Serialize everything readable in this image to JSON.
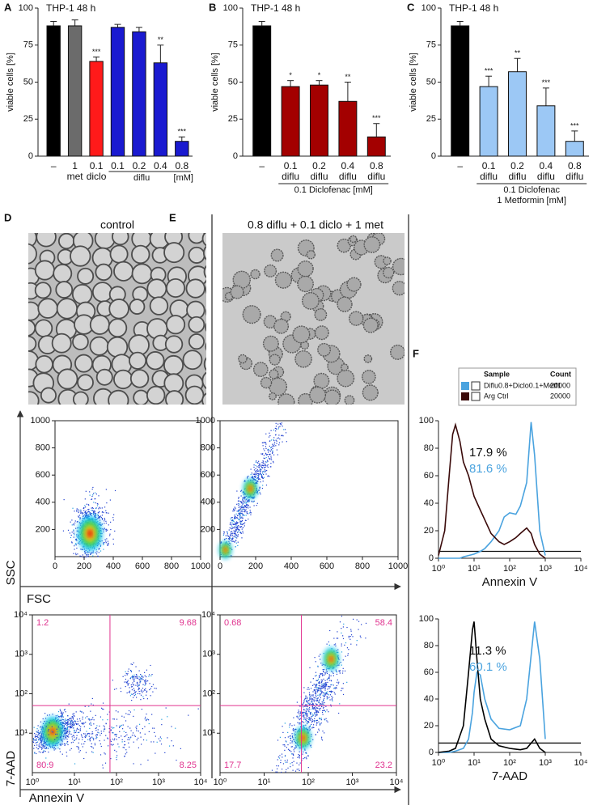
{
  "chart_data": [
    {
      "type": "bar",
      "panel": "A",
      "title": "THP-1 48 h",
      "ylabel": "viable cells [%]",
      "categories": [
        "–",
        "1",
        "0.1",
        "0.1",
        "0.2",
        "0.4",
        "0.8"
      ],
      "sublabels": [
        null,
        "met",
        "diclo",
        null,
        null,
        null,
        null
      ],
      "group": {
        "label": [
          "diflu"
        ],
        "span": [
          3,
          6
        ]
      },
      "unit_label": "[mM]",
      "values": [
        88,
        88,
        64,
        87,
        84,
        63,
        10
      ],
      "errors": [
        3,
        4,
        3,
        2,
        3,
        12,
        3
      ],
      "significance": [
        null,
        null,
        "***",
        null,
        null,
        "**",
        "***"
      ],
      "colors": [
        "#000000",
        "#6b6b6b",
        "#ff1a1a",
        "#1a1ad0",
        "#1a1ad0",
        "#1a1ad0",
        "#1a1ad0"
      ],
      "ylim": [
        0,
        100
      ],
      "yticks": [
        0,
        25,
        50,
        75,
        100
      ]
    },
    {
      "type": "bar",
      "panel": "B",
      "title": "THP-1 48 h",
      "ylabel": "viable cells [%]",
      "categories": [
        "–",
        "0.1",
        "0.2",
        "0.4",
        "0.8"
      ],
      "sublabels": [
        null,
        "diflu",
        "diflu",
        "diflu",
        "diflu"
      ],
      "group": {
        "label": [
          "0.1 Diclofenac [mM]"
        ],
        "span": [
          1,
          4
        ]
      },
      "values": [
        88,
        47,
        48,
        37,
        13
      ],
      "errors": [
        3,
        4,
        3,
        13,
        9
      ],
      "significance": [
        null,
        "*",
        "*",
        "**",
        "***"
      ],
      "colors": [
        "#000000",
        "#a30000",
        "#a30000",
        "#a30000",
        "#a30000"
      ],
      "ylim": [
        0,
        100
      ],
      "yticks": [
        0,
        25,
        50,
        75,
        100
      ]
    },
    {
      "type": "bar",
      "panel": "C",
      "title": "THP-1 48 h",
      "ylabel": "viable cells [%]",
      "categories": [
        "–",
        "0.1",
        "0.2",
        "0.4",
        "0.8"
      ],
      "sublabels": [
        null,
        "diflu",
        "diflu",
        "diflu",
        "diflu"
      ],
      "group": {
        "label": [
          "0.1 Diclofenac",
          "1 Metformin [mM]"
        ],
        "span": [
          1,
          4
        ]
      },
      "values": [
        88,
        47,
        57,
        34,
        10
      ],
      "errors": [
        3,
        7,
        9,
        12,
        7
      ],
      "significance": [
        null,
        "***",
        "**",
        "***",
        "***"
      ],
      "colors": [
        "#000000",
        "#9cc8f5",
        "#9cc8f5",
        "#9cc8f5",
        "#9cc8f5"
      ],
      "ylim": [
        0,
        100
      ],
      "yticks": [
        0,
        25,
        50,
        75,
        100
      ]
    },
    {
      "type": "density",
      "panel": "D",
      "image_title": "control",
      "xscale": "linear",
      "xlim": [
        0,
        1000
      ],
      "xticks": [
        0,
        200,
        400,
        600,
        800,
        1000
      ],
      "ylim": [
        0,
        1000
      ],
      "yticks": [
        200,
        400,
        600,
        800,
        1000
      ]
    },
    {
      "type": "density",
      "panel": "E",
      "image_title": "0.8 diflu + 0.1 diclo + 1 met",
      "xscale": "linear",
      "xlim": [
        0,
        1000
      ],
      "xticks": [
        0,
        200,
        400,
        600,
        800,
        1000
      ],
      "ylim": [
        0,
        1000
      ],
      "yticks": [
        200,
        400,
        600,
        800,
        1000
      ]
    },
    {
      "type": "density",
      "xscale": "log",
      "xlim": [
        1,
        10000
      ],
      "xticks": [
        {
          "value": 1,
          "label": "10⁰"
        },
        {
          "value": 10,
          "label": "10¹"
        },
        {
          "value": 100,
          "label": "10²"
        },
        {
          "value": 1000,
          "label": "10³"
        },
        {
          "value": 10000,
          "label": "10⁴"
        }
      ],
      "ylim": [
        1,
        10000
      ],
      "yticks": [
        {
          "value": 10,
          "label": "10¹"
        },
        {
          "value": 100,
          "label": "10²"
        },
        {
          "value": 1000,
          "label": "10³"
        },
        {
          "value": 10000,
          "label": "10⁴"
        }
      ],
      "gates": {
        "x": 70,
        "y": 50
      },
      "quadrants": [
        1.2,
        9.68,
        80.9,
        8.25
      ],
      "quadrant_color": "#e0338f"
    },
    {
      "type": "density",
      "xscale": "log",
      "xlim": [
        1,
        10000
      ],
      "xticks": [
        {
          "value": 1,
          "label": "10⁰"
        },
        {
          "value": 10,
          "label": "10¹"
        },
        {
          "value": 100,
          "label": "10²"
        },
        {
          "value": 1000,
          "label": "10³"
        },
        {
          "value": 10000,
          "label": "10⁴"
        }
      ],
      "ylim": [
        1,
        10000
      ],
      "yticks": [
        {
          "value": 10,
          "label": "10¹"
        },
        {
          "value": 100,
          "label": "10²"
        },
        {
          "value": 1000,
          "label": "10³"
        },
        {
          "value": 10000,
          "label": "10⁴"
        }
      ],
      "gates": {
        "x": 70,
        "y": 50
      },
      "quadrants": [
        0.68,
        58.4,
        17.7,
        23.2
      ],
      "quadrant_color": "#e0338f"
    },
    {
      "type": "line",
      "panel": "F",
      "xlabel": "Annexin V",
      "xscale": "log",
      "xlim": [
        1,
        10000
      ],
      "xticks": [
        {
          "value": 1,
          "label": "10⁰"
        },
        {
          "value": 10,
          "label": "10¹"
        },
        {
          "value": 100,
          "label": "10²"
        },
        {
          "value": 1000,
          "label": "10³"
        },
        {
          "value": 10000,
          "label": "10⁴"
        }
      ],
      "ylim": [
        0,
        100
      ],
      "yticks": [
        0,
        20,
        40,
        60,
        80,
        100
      ],
      "gate_y": 5,
      "legend_headers": [
        "Sample",
        "Count"
      ],
      "x": [
        1,
        1.5,
        2,
        2.5,
        3,
        4,
        5,
        7,
        10,
        15,
        20,
        30,
        50,
        70,
        100,
        150,
        200,
        300,
        400,
        500,
        700,
        1000
      ],
      "series": [
        {
          "name": "Diflu0.8+Diclo0.1+Metf1",
          "count": 20000,
          "color": "#4aa3df",
          "values": [
            0,
            0,
            0,
            0,
            0,
            0,
            1,
            2,
            3,
            5,
            7,
            12,
            20,
            30,
            33,
            32,
            38,
            55,
            99,
            75,
            20,
            2
          ]
        },
        {
          "name": "Arg Ctrl",
          "count": 20000,
          "color": "#3a0a0a",
          "values": [
            2,
            20,
            60,
            90,
            97,
            85,
            70,
            60,
            45,
            35,
            28,
            18,
            12,
            10,
            12,
            15,
            18,
            22,
            18,
            10,
            3,
            0
          ]
        }
      ],
      "annotations": [
        {
          "text": "17.9 %",
          "color": "#111111"
        },
        {
          "text": "81.6 %",
          "color": "#4aa3df"
        }
      ]
    },
    {
      "type": "line",
      "xlabel": "7-AAD",
      "xscale": "log",
      "xlim": [
        1,
        10000
      ],
      "xticks": [
        {
          "value": 1,
          "label": "10⁰"
        },
        {
          "value": 10,
          "label": "10¹"
        },
        {
          "value": 100,
          "label": "10²"
        },
        {
          "value": 1000,
          "label": "10³"
        },
        {
          "value": 10000,
          "label": "10⁴"
        }
      ],
      "ylim": [
        0,
        100
      ],
      "yticks": [
        0,
        20,
        40,
        60,
        80,
        100
      ],
      "gate_y": 7,
      "x": [
        1,
        2,
        3,
        5,
        7,
        9,
        10,
        12,
        15,
        20,
        30,
        50,
        100,
        200,
        300,
        500,
        700,
        1000
      ],
      "series": [
        {
          "color": "#4aa3df",
          "values": [
            0,
            0,
            1,
            3,
            10,
            30,
            45,
            60,
            58,
            40,
            25,
            18,
            17,
            20,
            40,
            98,
            70,
            10
          ]
        },
        {
          "color": "#000000",
          "values": [
            0,
            1,
            3,
            20,
            60,
            92,
            98,
            70,
            40,
            25,
            10,
            5,
            3,
            2,
            3,
            10,
            3,
            0
          ]
        }
      ],
      "annotations": [
        {
          "text": "11.3 %",
          "color": "#111111"
        },
        {
          "text": "60.1 %",
          "color": "#4aa3df"
        }
      ]
    }
  ],
  "shared_axes": {
    "scatter": {
      "xlabel": "FSC",
      "ylabel": "SSC"
    },
    "annexin": {
      "xlabel": "Annexin V",
      "ylabel": "7-AAD"
    }
  }
}
